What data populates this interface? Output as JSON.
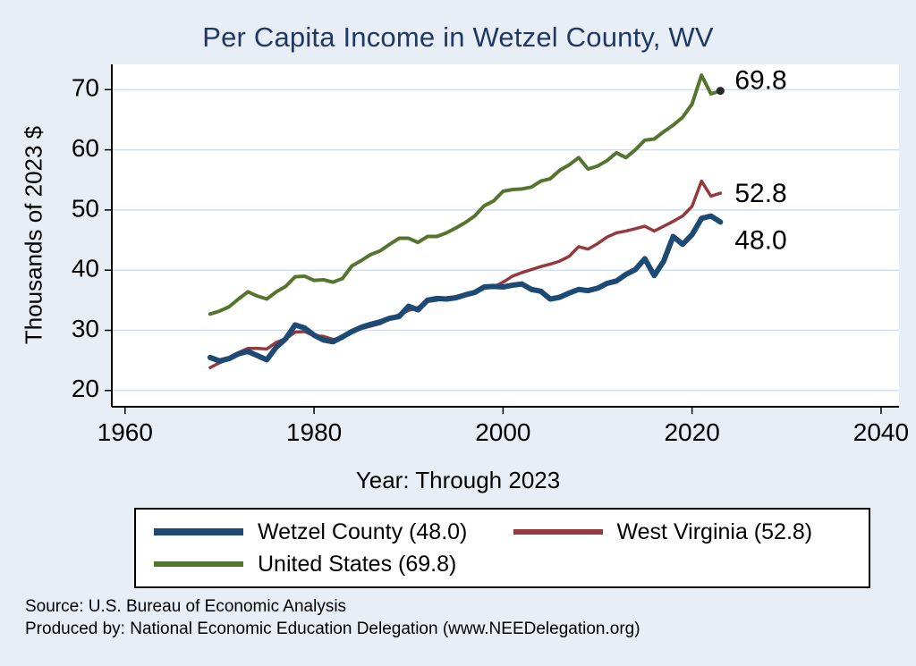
{
  "chart_data": {
    "type": "line",
    "title": "Per Capita Income in Wetzel County, WV",
    "xlabel": "Year: Through 2023",
    "ylabel": "Thousands of 2023 $",
    "x_ticks": [
      1960,
      1980,
      2000,
      2020,
      2040
    ],
    "y_ticks": [
      20,
      30,
      40,
      50,
      60,
      70
    ],
    "xlim": [
      1958.6,
      2041.9
    ],
    "ylim": [
      17.3,
      74.2
    ],
    "grid": "horizontal",
    "legend_position": "bottom",
    "years": [
      1969,
      1970,
      1971,
      1972,
      1973,
      1974,
      1975,
      1976,
      1977,
      1978,
      1979,
      1980,
      1981,
      1982,
      1983,
      1984,
      1985,
      1986,
      1987,
      1988,
      1989,
      1990,
      1991,
      1992,
      1993,
      1994,
      1995,
      1996,
      1997,
      1998,
      1999,
      2000,
      2001,
      2002,
      2003,
      2004,
      2005,
      2006,
      2007,
      2008,
      2009,
      2010,
      2011,
      2012,
      2013,
      2014,
      2015,
      2016,
      2017,
      2018,
      2019,
      2020,
      2021,
      2022,
      2023
    ],
    "series": [
      {
        "name": "Wetzel County",
        "legend_label": "Wetzel County (48.0)",
        "end_label": "48.0",
        "color": "#1d4a74",
        "width": 6,
        "values": [
          25.5,
          24.9,
          25.3,
          26.1,
          26.5,
          25.8,
          25.1,
          27.2,
          28.6,
          30.9,
          30.4,
          29.2,
          28.4,
          28.1,
          28.9,
          29.8,
          30.5,
          31.0,
          31.4,
          32.0,
          32.3,
          34.0,
          33.4,
          35.0,
          35.3,
          35.2,
          35.4,
          35.9,
          36.3,
          37.2,
          37.3,
          37.2,
          37.5,
          37.7,
          36.8,
          36.5,
          35.2,
          35.5,
          36.2,
          36.8,
          36.6,
          37.0,
          37.8,
          38.2,
          39.3,
          40.1,
          41.9,
          39.1,
          41.5,
          45.6,
          44.3,
          45.9,
          48.6,
          49.0,
          48.0
        ]
      },
      {
        "name": "West Virginia",
        "legend_label": "West Virginia (52.8)",
        "end_label": "52.8",
        "color": "#943a3e",
        "width": 3.5,
        "values": [
          23.8,
          24.6,
          25.3,
          26.3,
          27.0,
          27.0,
          26.9,
          28.0,
          28.6,
          29.7,
          29.8,
          29.1,
          29.0,
          28.5,
          28.7,
          29.8,
          30.3,
          30.7,
          31.1,
          31.9,
          32.6,
          33.3,
          33.8,
          34.8,
          35.0,
          35.4,
          35.6,
          35.8,
          36.3,
          37.0,
          37.2,
          38.0,
          39.0,
          39.6,
          40.1,
          40.6,
          41.0,
          41.5,
          42.3,
          43.9,
          43.5,
          44.4,
          45.5,
          46.2,
          46.5,
          46.9,
          47.3,
          46.5,
          47.3,
          48.1,
          49.0,
          50.6,
          54.8,
          52.3,
          52.8
        ]
      },
      {
        "name": "United States",
        "legend_label": "United States (69.8)",
        "end_label": "69.8",
        "color": "#55752f",
        "width": 4,
        "values": [
          32.7,
          33.2,
          33.9,
          35.2,
          36.4,
          35.7,
          35.2,
          36.4,
          37.3,
          38.9,
          39.0,
          38.3,
          38.4,
          38.0,
          38.6,
          40.7,
          41.6,
          42.6,
          43.2,
          44.3,
          45.3,
          45.3,
          44.6,
          45.6,
          45.6,
          46.2,
          47.0,
          47.9,
          49.0,
          50.7,
          51.5,
          53.1,
          53.4,
          53.5,
          53.8,
          54.8,
          55.2,
          56.6,
          57.5,
          58.7,
          56.8,
          57.3,
          58.2,
          59.5,
          58.7,
          60.0,
          61.6,
          61.8,
          63.0,
          64.1,
          65.4,
          67.6,
          72.4,
          69.3,
          69.8
        ]
      }
    ],
    "colors": {
      "background": "#e8eef6",
      "plot_background": "#ffffff",
      "gridline": "#cfdff0",
      "axis": "#000000",
      "title": "#1f3864"
    }
  },
  "notes": {
    "source": "Source: U.S. Bureau of Economic Analysis",
    "produced_by": "Produced by: National Economic Education Delegation (www.NEEDelegation.org)"
  }
}
